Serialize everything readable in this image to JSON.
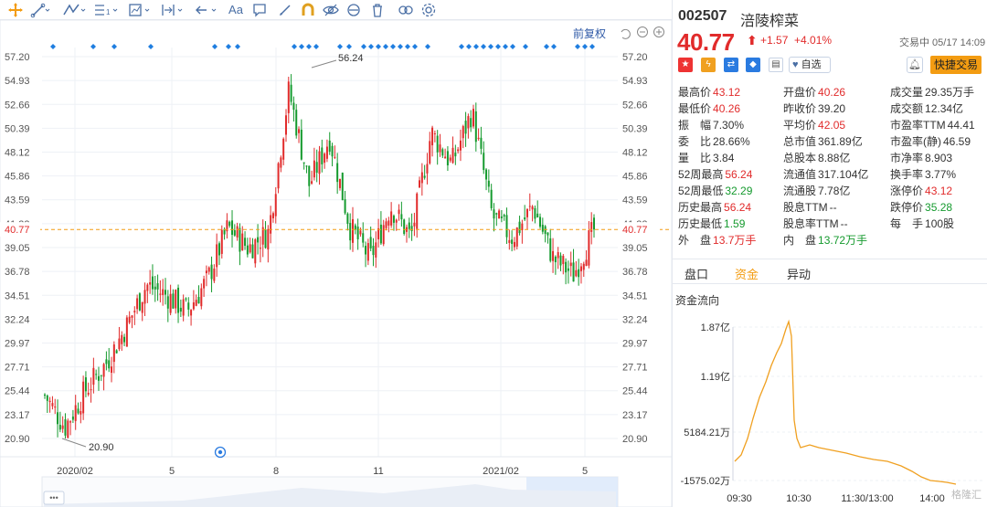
{
  "toolbar": {
    "tools": [
      "crosshair-icon",
      "line-tool-icon",
      "polyline-tool-icon",
      "fib-tool-icon",
      "measure-tool-icon",
      "range-tool-icon",
      "arrow-tool-icon",
      "text-tool-icon",
      "comment-tool-icon",
      "pencil-tool-icon",
      "magnet-icon",
      "eye-icon",
      "trash-icon",
      "link-icon",
      "settings-icon"
    ],
    "text_tool_label": "Aa",
    "fuquan_label": "前复权"
  },
  "chart": {
    "y_ticks": [
      "57.20",
      "54.93",
      "52.66",
      "50.39",
      "48.12",
      "45.86",
      "43.59",
      "41.32",
      "39.05",
      "36.78",
      "34.51",
      "32.24",
      "29.97",
      "27.71",
      "25.44",
      "23.17",
      "20.90"
    ],
    "x_labels": [
      "2020/02",
      "5",
      "8",
      "11",
      "2021/02",
      "5"
    ],
    "current_price_label": "40.77",
    "max_label": "56.24",
    "min_label": "20.90",
    "more_label": "•••",
    "colors": {
      "up": "#e12b2b",
      "down": "#159a2e",
      "grid": "#eef1f6",
      "price_line": "#f39c12",
      "dot": "#1f7ee0"
    }
  },
  "chart_data": {
    "type": "candlestick",
    "title": "",
    "ylim": [
      20.9,
      57.2
    ],
    "x_ticks": [
      "2020/02",
      "5",
      "8",
      "11",
      "2021/02",
      "5"
    ],
    "annotations": [
      {
        "label": "56.24",
        "type": "period-high"
      },
      {
        "label": "20.90",
        "type": "period-low"
      }
    ],
    "last_price": 40.77,
    "approx_close_path": [
      {
        "t": "2020/01",
        "v": 25.0
      },
      {
        "t": "2020/02",
        "v": 22.0
      },
      {
        "t": "2020/02",
        "v": 25.5
      },
      {
        "t": "2020/03",
        "v": 28.0
      },
      {
        "t": "2020/04",
        "v": 31.5
      },
      {
        "t": "2020/05",
        "v": 35.5
      },
      {
        "t": "2020/06",
        "v": 34.5
      },
      {
        "t": "2020/06",
        "v": 33.0
      },
      {
        "t": "2020/07",
        "v": 36.0
      },
      {
        "t": "2020/07",
        "v": 41.0
      },
      {
        "t": "2020/08",
        "v": 39.0
      },
      {
        "t": "2020/08",
        "v": 40.5
      },
      {
        "t": "2020/09",
        "v": 54.0
      },
      {
        "t": "2020/09",
        "v": 45.0
      },
      {
        "t": "2020/10",
        "v": 49.5
      },
      {
        "t": "2020/11",
        "v": 41.0
      },
      {
        "t": "2020/11",
        "v": 38.0
      },
      {
        "t": "2020/12",
        "v": 43.0
      },
      {
        "t": "2020/12",
        "v": 40.0
      },
      {
        "t": "2021/01",
        "v": 50.0
      },
      {
        "t": "2021/01",
        "v": 47.0
      },
      {
        "t": "2021/02",
        "v": 52.0
      },
      {
        "t": "2021/03",
        "v": 42.0
      },
      {
        "t": "2021/03",
        "v": 40.0
      },
      {
        "t": "2021/04",
        "v": 43.0
      },
      {
        "t": "2021/04",
        "v": 38.0
      },
      {
        "t": "2021/05",
        "v": 36.5
      },
      {
        "t": "2021/05",
        "v": 40.77
      }
    ]
  },
  "stock": {
    "code": "002507",
    "name": "涪陵榨菜",
    "price": "40.77",
    "change": "+1.57",
    "change_pct": "+4.01%",
    "trade_date": "交易中 05/17 14:09",
    "watch_label": "自选",
    "quick_trade_label": "快捷交易"
  },
  "quote": [
    [
      {
        "k": "最高价",
        "v": "43.12",
        "c": "red"
      },
      {
        "k": "开盘价",
        "v": "40.26",
        "c": "red"
      },
      {
        "k": "成交量",
        "v": "29.35万手",
        "c": "dark"
      }
    ],
    [
      {
        "k": "最低价",
        "v": "40.26",
        "c": "red"
      },
      {
        "k": "昨收价",
        "v": "39.20",
        "c": "dark"
      },
      {
        "k": "成交额",
        "v": "12.34亿",
        "c": "dark"
      }
    ],
    [
      {
        "k": "振　幅",
        "v": "7.30%",
        "c": "dark"
      },
      {
        "k": "平均价",
        "v": "42.05",
        "c": "red"
      },
      {
        "k": "市盈率TTM",
        "v": "44.41",
        "c": "dark"
      }
    ],
    [
      {
        "k": "委　比",
        "v": "28.66%",
        "c": "dark"
      },
      {
        "k": "总市值",
        "v": "361.89亿",
        "c": "dark"
      },
      {
        "k": "市盈率(静)",
        "v": "46.59",
        "c": "dark"
      }
    ],
    [
      {
        "k": "量　比",
        "v": "3.84",
        "c": "dark"
      },
      {
        "k": "总股本",
        "v": "8.88亿",
        "c": "dark"
      },
      {
        "k": "市净率",
        "v": "8.903",
        "c": "dark"
      }
    ],
    [
      {
        "k": "52周最高",
        "v": "56.24",
        "c": "red"
      },
      {
        "k": "流通值",
        "v": "317.104亿",
        "c": "dark"
      },
      {
        "k": "换手率",
        "v": "3.77%",
        "c": "dark"
      }
    ],
    [
      {
        "k": "52周最低",
        "v": "32.29",
        "c": "green"
      },
      {
        "k": "流通股",
        "v": "7.78亿",
        "c": "dark"
      },
      {
        "k": "涨停价",
        "v": "43.12",
        "c": "red"
      }
    ],
    [
      {
        "k": "历史最高",
        "v": "56.24",
        "c": "red"
      },
      {
        "k": "股息TTM",
        "v": "--",
        "c": "dark"
      },
      {
        "k": "跌停价",
        "v": "35.28",
        "c": "green"
      }
    ],
    [
      {
        "k": "历史最低",
        "v": "1.59",
        "c": "green"
      },
      {
        "k": "股息率TTM",
        "v": "--",
        "c": "dark"
      },
      {
        "k": "每　手",
        "v": "100股",
        "c": "dark"
      }
    ],
    [
      {
        "k": "外　盘",
        "v": "13.7万手",
        "c": "red"
      },
      {
        "k": "内　盘",
        "v": "13.72万手",
        "c": "green"
      }
    ]
  ],
  "tabs": [
    {
      "label": "盘口",
      "active": false
    },
    {
      "label": "资金",
      "active": true
    },
    {
      "label": "异动",
      "active": false
    }
  ],
  "fund_flow": {
    "title": "资金流向",
    "y_labels": [
      "1.87亿",
      "1.19亿",
      "5184.21万",
      "-1575.02万"
    ],
    "x_labels": [
      "09:30",
      "10:30",
      "11:30/13:00",
      "14:00"
    ],
    "watermark": "格隆汇"
  }
}
